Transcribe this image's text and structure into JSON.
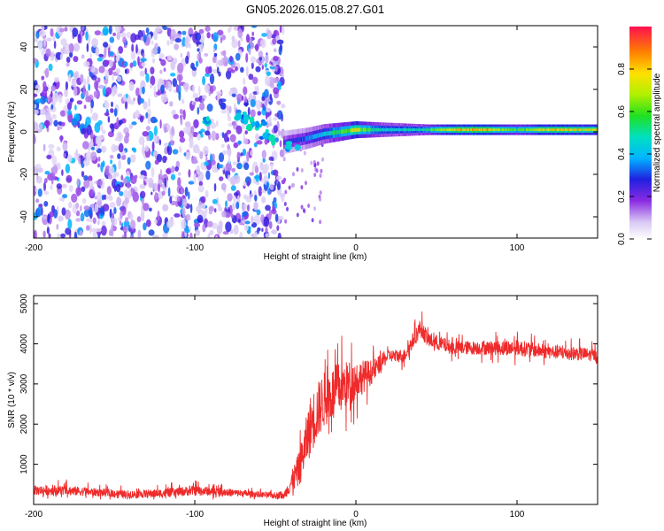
{
  "title": "GN05.2026.015.08.27.G01",
  "colors": {
    "snr_line": "#ef2a2a",
    "axis": "#000000"
  },
  "chart_data": [
    {
      "type": "heatmap",
      "xlabel": "Height of straight line (km)",
      "ylabel": "Frequency (Hz)",
      "xlim": [
        -200,
        150
      ],
      "ylim": [
        -50,
        50
      ],
      "xticks": [
        -200,
        -100,
        0,
        100
      ],
      "yticks": [
        -40,
        -20,
        0,
        20,
        40
      ],
      "colorbar": {
        "label": "Normalized spectral amplitude",
        "range": [
          0,
          1
        ],
        "ticks": [
          0.0,
          0.2,
          0.4,
          0.6,
          0.8
        ],
        "tick_labels": [
          "0.0",
          "0.2",
          "0.4",
          "0.6",
          "0.8"
        ]
      },
      "features": {
        "noise_region_x": [
          -200,
          -45
        ],
        "signal_track": {
          "x": [
            -45,
            -30,
            -20,
            -10,
            0,
            10,
            20,
            40,
            60,
            80,
            90,
            100,
            120,
            150
          ],
          "freq_hz": [
            -5,
            -3,
            -1,
            0,
            1,
            1,
            1,
            1,
            1,
            1,
            1,
            1,
            1,
            1
          ],
          "amplitude": [
            0.25,
            0.35,
            0.45,
            0.6,
            0.75,
            0.55,
            0.45,
            0.5,
            0.8,
            0.85,
            0.7,
            0.6,
            0.8,
            0.75
          ]
        }
      }
    },
    {
      "type": "line",
      "xlabel": "Height of straight line (km)",
      "ylabel": "SNR (10 * v/v)",
      "xlim": [
        -200,
        150
      ],
      "ylim": [
        0,
        5200
      ],
      "xticks": [
        -200,
        -100,
        0,
        100
      ],
      "yticks": [
        1000,
        2000,
        3000,
        4000,
        5000
      ],
      "series": [
        {
          "name": "SNR",
          "x": [
            -200,
            -180,
            -160,
            -140,
            -120,
            -100,
            -80,
            -60,
            -45,
            -35,
            -28,
            -20,
            -10,
            0,
            10,
            20,
            30,
            40,
            45,
            60,
            80,
            100,
            120,
            140,
            150
          ],
          "mean": [
            350,
            350,
            300,
            250,
            280,
            350,
            300,
            250,
            200,
            900,
            2000,
            2600,
            2900,
            3100,
            3300,
            3700,
            3700,
            4400,
            4100,
            3900,
            3900,
            3900,
            3800,
            3750,
            3700
          ],
          "spread": [
            250,
            250,
            200,
            200,
            220,
            250,
            200,
            150,
            150,
            900,
            1500,
            1400,
            1300,
            1000,
            600,
            300,
            350,
            450,
            400,
            350,
            350,
            400,
            350,
            350,
            300
          ]
        }
      ]
    }
  ]
}
